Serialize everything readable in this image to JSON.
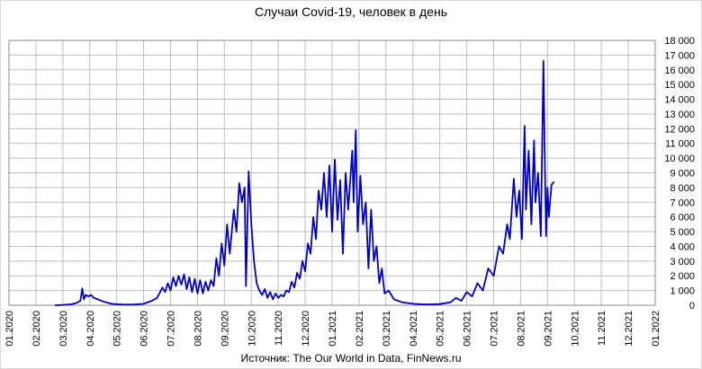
{
  "chart_data": {
    "type": "line",
    "title": "Случаи Covid-19, человек в день",
    "source": "Источник: The Our World in Data, FinNews.ru",
    "color": "#0000cc",
    "grid": true,
    "x": [
      1.7,
      2.0,
      2.3,
      2.5,
      2.65,
      2.72,
      2.78,
      2.85,
      2.95,
      3.05,
      3.15,
      3.3,
      3.5,
      3.8,
      4.2,
      4.6,
      5.0,
      5.3,
      5.5,
      5.7,
      5.8,
      5.9,
      6.0,
      6.1,
      6.2,
      6.3,
      6.4,
      6.5,
      6.6,
      6.7,
      6.8,
      6.9,
      7.0,
      7.1,
      7.2,
      7.3,
      7.4,
      7.5,
      7.6,
      7.7,
      7.8,
      7.9,
      8.0,
      8.1,
      8.2,
      8.35,
      8.45,
      8.55,
      8.65,
      8.75,
      8.8,
      8.9,
      9.0,
      9.1,
      9.2,
      9.3,
      9.4,
      9.5,
      9.6,
      9.7,
      9.8,
      9.9,
      10.0,
      10.1,
      10.2,
      10.3,
      10.4,
      10.5,
      10.6,
      10.7,
      10.8,
      10.9,
      11.0,
      11.1,
      11.2,
      11.3,
      11.4,
      11.5,
      11.6,
      11.7,
      11.8,
      11.9,
      12.0,
      12.1,
      12.2,
      12.3,
      12.4,
      12.5,
      12.6,
      12.75,
      12.8,
      12.88,
      12.95,
      13.05,
      13.15,
      13.25,
      13.35,
      13.45,
      13.55,
      13.65,
      13.75,
      13.85,
      13.95,
      14.1,
      14.3,
      14.6,
      15.0,
      15.5,
      16.0,
      16.4,
      16.6,
      16.8,
      17.0,
      17.2,
      17.4,
      17.6,
      17.8,
      18.0,
      18.2,
      18.35,
      18.5,
      18.6,
      18.75,
      18.85,
      18.95,
      19.05,
      19.15,
      19.2,
      19.3,
      19.4,
      19.5,
      19.55,
      19.65,
      19.75,
      19.85,
      19.9,
      19.95,
      20.0,
      20.05,
      20.15,
      20.25
    ],
    "values": [
      0,
      20,
      60,
      150,
      300,
      1150,
      400,
      700,
      600,
      700,
      500,
      400,
      250,
      100,
      50,
      40,
      100,
      300,
      500,
      1200,
      900,
      1500,
      1000,
      1900,
      1300,
      2000,
      1400,
      2100,
      1100,
      1900,
      900,
      1800,
      800,
      1700,
      800,
      1600,
      1000,
      1700,
      1300,
      3200,
      2000,
      4200,
      2700,
      5500,
      3500,
      6500,
      5000,
      8300,
      7000,
      8000,
      1300,
      9100,
      5500,
      3000,
      1500,
      1000,
      700,
      1100,
      500,
      900,
      400,
      800,
      500,
      700,
      600,
      1000,
      900,
      1600,
      1200,
      2200,
      1800,
      3000,
      2300,
      4200,
      3500,
      6000,
      4500,
      7800,
      6500,
      9000,
      6000,
      9500,
      5000,
      9900,
      5800,
      8500,
      3500,
      9000,
      6500,
      10500,
      7000,
      11900,
      5000,
      8800,
      5500,
      7000,
      2500,
      6500,
      3000,
      4000,
      1500,
      2500,
      800,
      1000,
      400,
      200,
      100,
      50,
      80,
      200,
      500,
      300,
      900,
      600,
      1500,
      1000,
      2500,
      2000,
      4000,
      3500,
      5500,
      4500,
      8600,
      6000,
      7800,
      4500,
      12200,
      6500,
      10500,
      5500,
      11200,
      7000,
      9000,
      4700,
      16600,
      10000,
      4700,
      8000,
      6000,
      8200,
      8400
    ],
    "xlim": [
      0,
      24
    ],
    "xticks": [
      {
        "value": 0,
        "label": "01.2020"
      },
      {
        "value": 1,
        "label": "02.2020"
      },
      {
        "value": 2,
        "label": "03.2020"
      },
      {
        "value": 3,
        "label": "04.2020"
      },
      {
        "value": 4,
        "label": "05.2020"
      },
      {
        "value": 5,
        "label": "06.2020"
      },
      {
        "value": 6,
        "label": "07.2020"
      },
      {
        "value": 7,
        "label": "08.2020"
      },
      {
        "value": 8,
        "label": "09.2020"
      },
      {
        "value": 9,
        "label": "10.2020"
      },
      {
        "value": 10,
        "label": "11.2020"
      },
      {
        "value": 11,
        "label": "12.2020"
      },
      {
        "value": 12,
        "label": "01.2021"
      },
      {
        "value": 13,
        "label": "02.2021"
      },
      {
        "value": 14,
        "label": "03.2021"
      },
      {
        "value": 15,
        "label": "04.2021"
      },
      {
        "value": 16,
        "label": "05.2021"
      },
      {
        "value": 17,
        "label": "06.2021"
      },
      {
        "value": 18,
        "label": "07.2021"
      },
      {
        "value": 19,
        "label": "08.2021"
      },
      {
        "value": 20,
        "label": "09.2021"
      },
      {
        "value": 21,
        "label": "10.2021"
      },
      {
        "value": 22,
        "label": "11.2021"
      },
      {
        "value": 23,
        "label": "12.2021"
      },
      {
        "value": 24,
        "label": "01.2022"
      }
    ],
    "ylim": [
      0,
      18000
    ],
    "yticks": [
      0,
      {
        "value": 1000,
        "label": "1 000"
      },
      {
        "value": 2000,
        "label": "2 000"
      },
      {
        "value": 3000,
        "label": "3 000"
      },
      {
        "value": 4000,
        "label": "4 000"
      },
      {
        "value": 5000,
        "label": "5 000"
      },
      {
        "value": 6000,
        "label": "6 000"
      },
      {
        "value": 7000,
        "label": "7 000"
      },
      {
        "value": 8000,
        "label": "8 000"
      },
      {
        "value": 9000,
        "label": "9 000"
      },
      {
        "value": 10000,
        "label": "10 000"
      },
      {
        "value": 11000,
        "label": "11 000"
      },
      {
        "value": 12000,
        "label": "12 000"
      },
      {
        "value": 13000,
        "label": "13 000"
      },
      {
        "value": 14000,
        "label": "14 000"
      },
      {
        "value": 15000,
        "label": "15 000"
      },
      {
        "value": 16000,
        "label": "16 000"
      },
      {
        "value": 17000,
        "label": "17 000"
      },
      {
        "value": 18000,
        "label": "18 000"
      }
    ]
  }
}
